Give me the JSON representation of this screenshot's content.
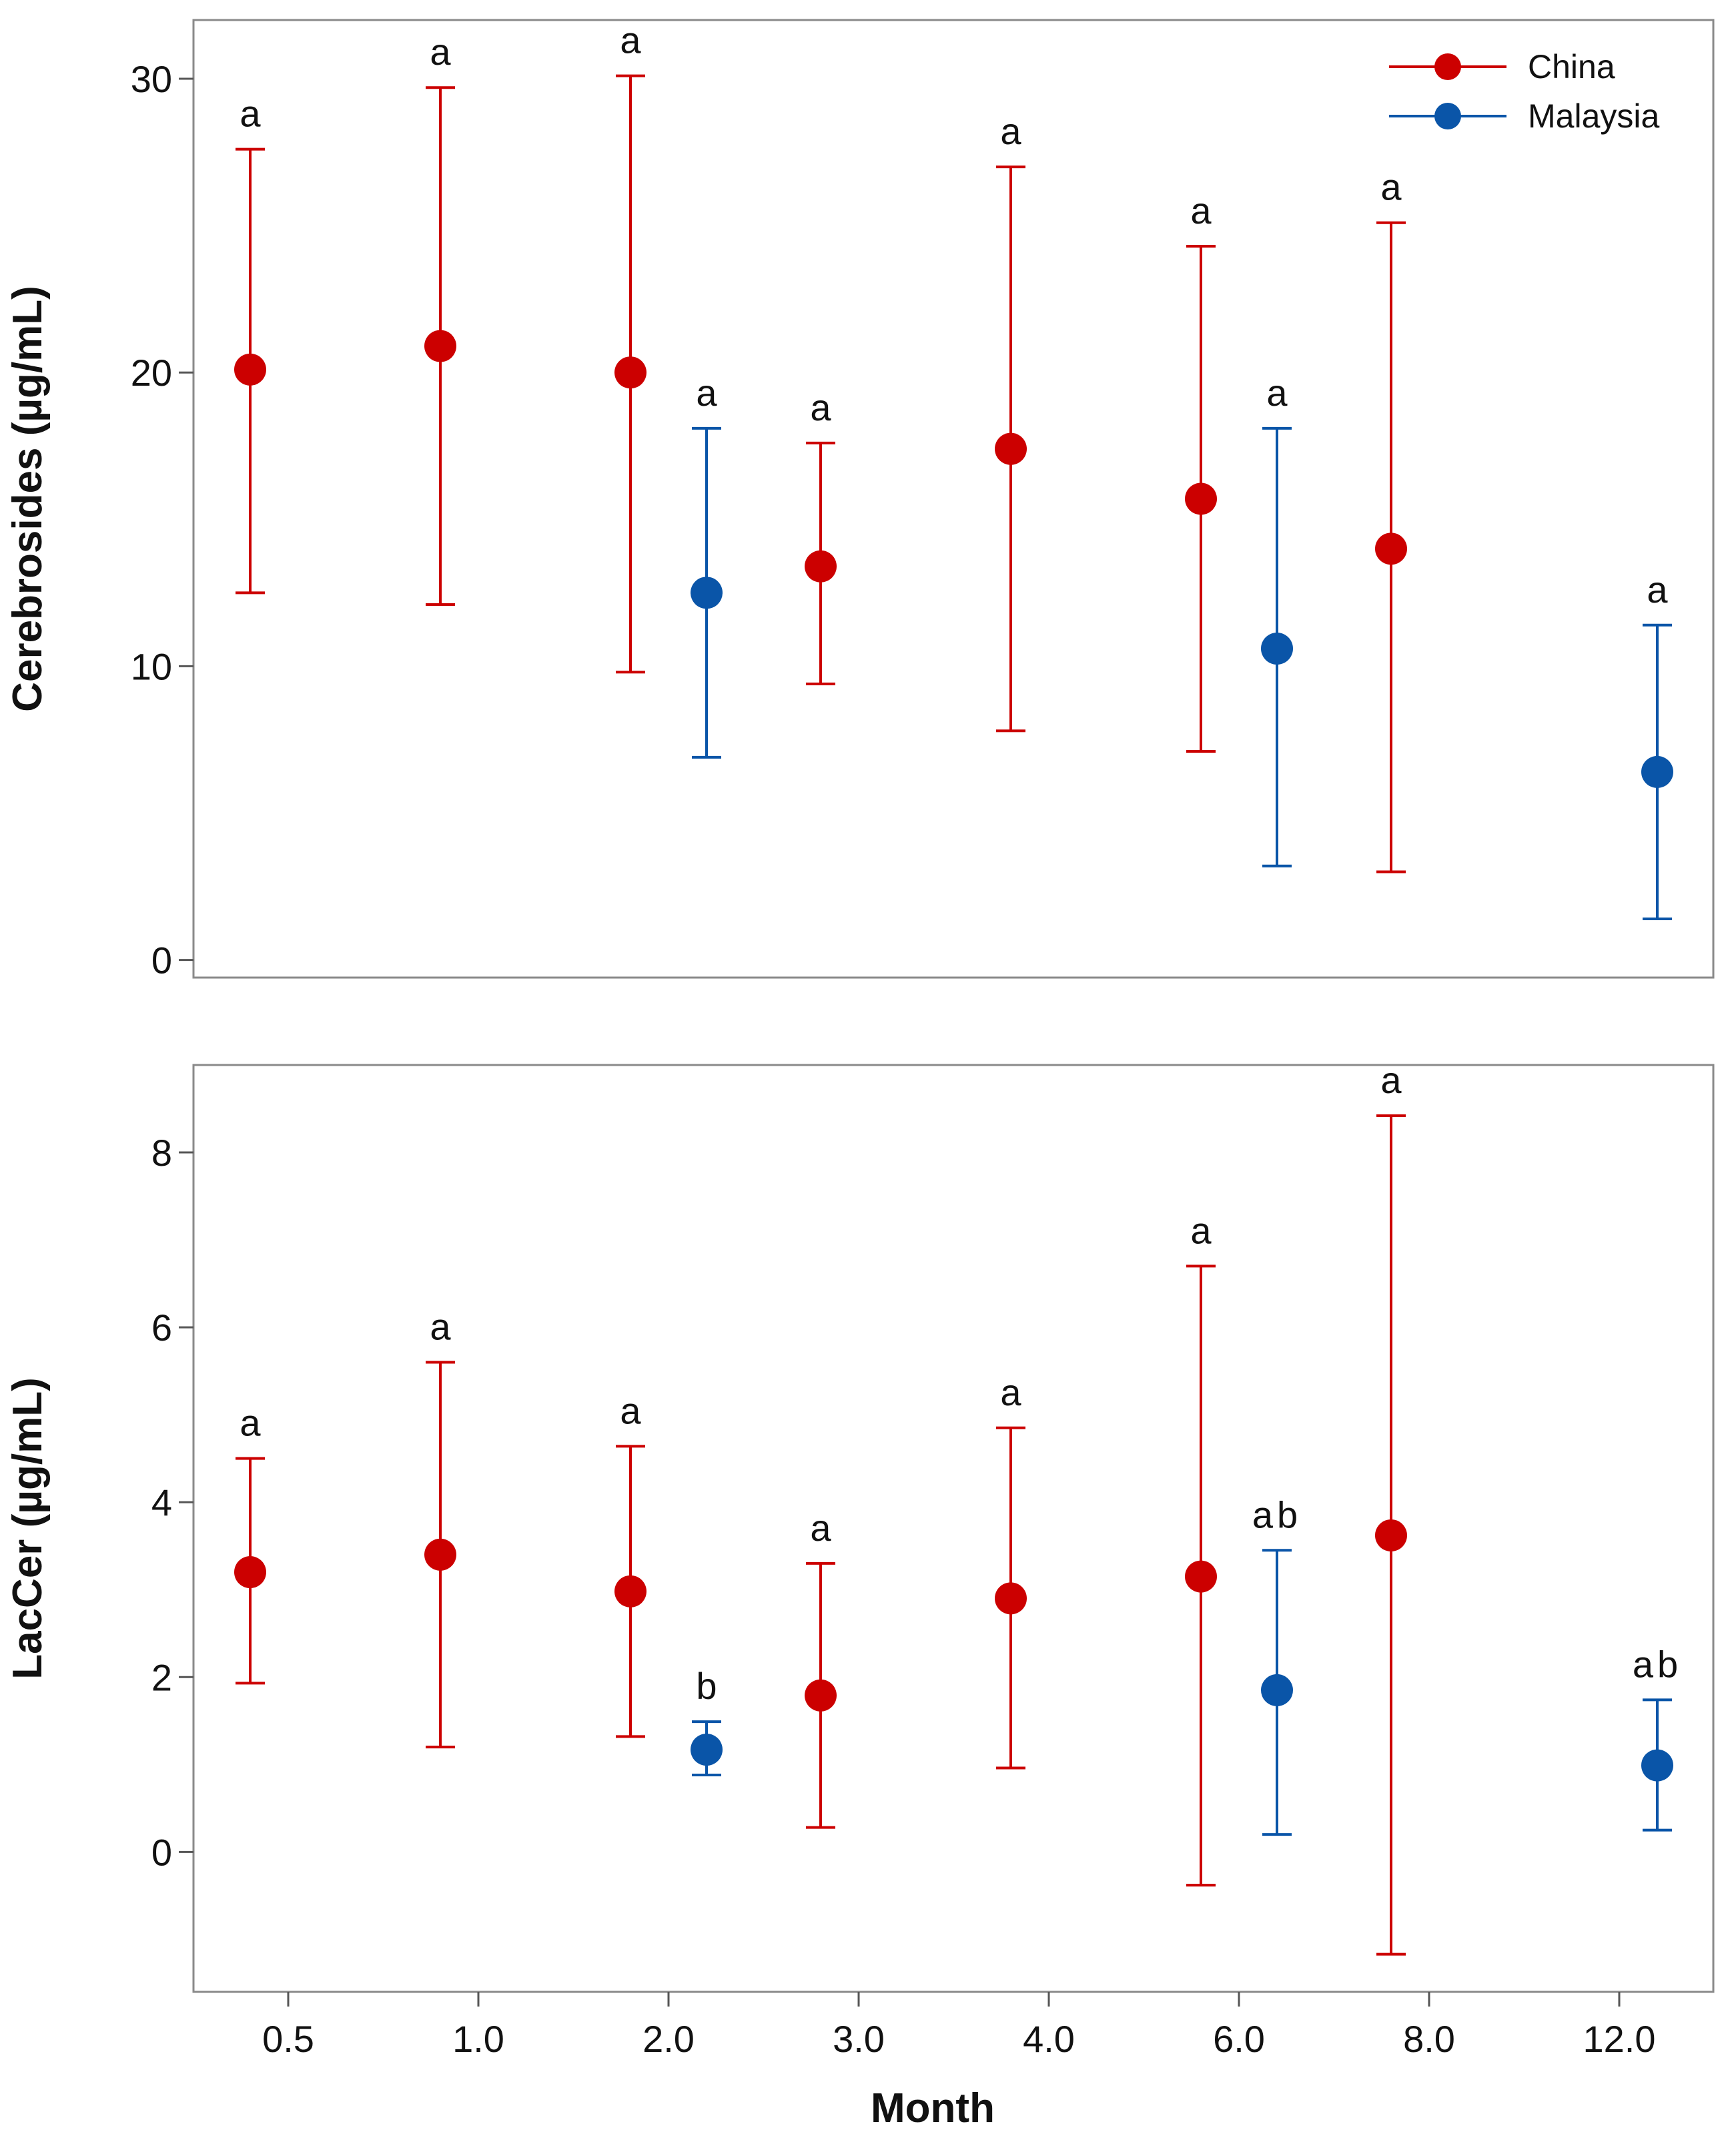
{
  "legend": {
    "placement": "top-right",
    "entries": [
      {
        "name": "China",
        "color": "#cc0000"
      },
      {
        "name": "Malaysia",
        "color": "#0a55a8"
      }
    ]
  },
  "xaxis": {
    "label": "Month",
    "categories": [
      "0.5",
      "1.0",
      "2.0",
      "3.0",
      "4.0",
      "6.0",
      "8.0",
      "12.0"
    ]
  },
  "chart_data": [
    {
      "type": "scatter",
      "subtype": "mean-with-error-bars",
      "ylabel": "Cerebrosides (µg/mL)",
      "ylim": [
        -0.6,
        32
      ],
      "yticks": [
        0,
        10,
        20,
        30
      ],
      "grid": false,
      "series": [
        {
          "name": "China",
          "color": "#cc0000",
          "points": [
            {
              "cat": "0.5",
              "mean": 20.1,
              "low": 12.5,
              "high": 27.6,
              "letter": "a"
            },
            {
              "cat": "1.0",
              "mean": 20.9,
              "low": 12.1,
              "high": 29.7,
              "letter": "a"
            },
            {
              "cat": "2.0",
              "mean": 20.0,
              "low": 9.8,
              "high": 30.1,
              "letter": "a"
            },
            {
              "cat": "3.0",
              "mean": 13.4,
              "low": 9.4,
              "high": 17.6,
              "letter": "a"
            },
            {
              "cat": "4.0",
              "mean": 17.4,
              "low": 7.8,
              "high": 27.0,
              "letter": "a"
            },
            {
              "cat": "6.0",
              "mean": 15.7,
              "low": 7.1,
              "high": 24.3,
              "letter": "a"
            },
            {
              "cat": "8.0",
              "mean": 14.0,
              "low": 3.0,
              "high": 25.1,
              "letter": "a"
            }
          ]
        },
        {
          "name": "Malaysia",
          "color": "#0a55a8",
          "points": [
            {
              "cat": "2.0",
              "mean": 12.5,
              "low": 6.9,
              "high": 18.1,
              "letter": "a"
            },
            {
              "cat": "6.0",
              "mean": 10.6,
              "low": 3.2,
              "high": 18.1,
              "letter": "a"
            },
            {
              "cat": "12.0",
              "mean": 6.4,
              "low": 1.4,
              "high": 11.4,
              "letter": "a"
            }
          ]
        }
      ]
    },
    {
      "type": "scatter",
      "subtype": "mean-with-error-bars",
      "ylabel": "LacCer (µg/mL)",
      "ylim": [
        -1.6,
        9.0
      ],
      "yticks": [
        0,
        2,
        4,
        6,
        8
      ],
      "grid": false,
      "series": [
        {
          "name": "China",
          "color": "#cc0000",
          "points": [
            {
              "cat": "0.5",
              "mean": 3.2,
              "low": 1.93,
              "high": 4.5,
              "letter": "a"
            },
            {
              "cat": "1.0",
              "mean": 3.4,
              "low": 1.2,
              "high": 5.6,
              "letter": "a"
            },
            {
              "cat": "2.0",
              "mean": 2.98,
              "low": 1.32,
              "high": 4.64,
              "letter": "a"
            },
            {
              "cat": "3.0",
              "mean": 1.79,
              "low": 0.28,
              "high": 3.3,
              "letter": "a"
            },
            {
              "cat": "4.0",
              "mean": 2.9,
              "low": 0.96,
              "high": 4.85,
              "letter": "a"
            },
            {
              "cat": "6.0",
              "mean": 3.15,
              "low": -0.38,
              "high": 6.7,
              "letter": "a"
            },
            {
              "cat": "8.0",
              "mean": 3.62,
              "low": -1.17,
              "high": 8.42,
              "letter": "a"
            }
          ]
        },
        {
          "name": "Malaysia",
          "color": "#0a55a8",
          "points": [
            {
              "cat": "2.0",
              "mean": 1.17,
              "low": 0.88,
              "high": 1.49,
              "letter": "b"
            },
            {
              "cat": "6.0",
              "mean": 1.85,
              "low": 0.2,
              "high": 3.45,
              "letter": "ab"
            },
            {
              "cat": "12.0",
              "mean": 0.99,
              "low": 0.25,
              "high": 1.74,
              "letter": "ab"
            }
          ]
        }
      ]
    }
  ]
}
